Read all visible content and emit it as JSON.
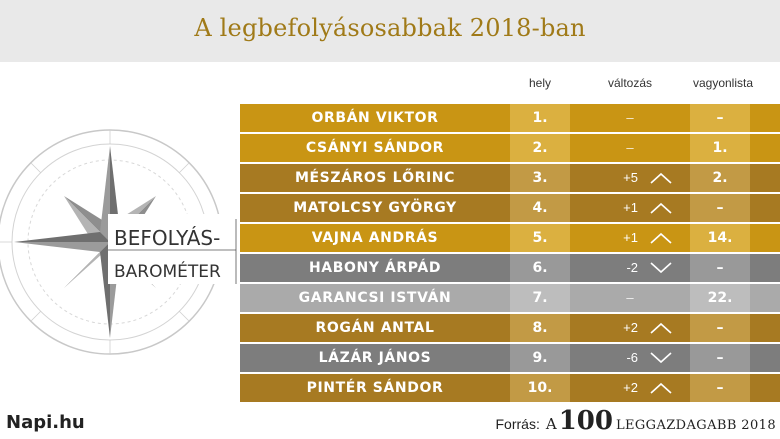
{
  "title": "A legbefolyásosabbak 2018-ban",
  "logo": {
    "line1": "BEFOLYÁS-",
    "line2": "BAROMÉTER"
  },
  "columns": {
    "hely": "hely",
    "valtozas": "változás",
    "vagyonlista": "vagyonlista"
  },
  "rows": [
    {
      "name": "ORBÁN VIKTOR",
      "rank": "1.",
      "change": "–",
      "direction": "none",
      "wealth": "–",
      "style": "gold"
    },
    {
      "name": "CSÁNYI SÁNDOR",
      "rank": "2.",
      "change": "–",
      "direction": "none",
      "wealth": "1.",
      "style": "gold"
    },
    {
      "name": "MÉSZÁROS LŐRINC",
      "rank": "3.",
      "change": "+5",
      "direction": "up",
      "wealth": "2.",
      "style": "bronze"
    },
    {
      "name": "MATOLCSY GYÖRGY",
      "rank": "4.",
      "change": "+1",
      "direction": "up",
      "wealth": "–",
      "style": "bronze"
    },
    {
      "name": "VAJNA ANDRÁS",
      "rank": "5.",
      "change": "+1",
      "direction": "up",
      "wealth": "14.",
      "style": "gold"
    },
    {
      "name": "HABONY ÁRPÁD",
      "rank": "6.",
      "change": "-2",
      "direction": "down",
      "wealth": "–",
      "style": "gray"
    },
    {
      "name": "GARANCSI ISTVÁN",
      "rank": "7.",
      "change": "–",
      "direction": "none",
      "wealth": "22.",
      "style": "lightgray"
    },
    {
      "name": "ROGÁN ANTAL",
      "rank": "8.",
      "change": "+2",
      "direction": "up",
      "wealth": "–",
      "style": "bronze"
    },
    {
      "name": "LÁZÁR JÁNOS",
      "rank": "9.",
      "change": "-6",
      "direction": "down",
      "wealth": "–",
      "style": "gray"
    },
    {
      "name": "PINTÉR SÁNDOR",
      "rank": "10.",
      "change": "+2",
      "direction": "up",
      "wealth": "–",
      "style": "bronze"
    }
  ],
  "palette": {
    "gold": {
      "name": "#c99514",
      "hely": "#dbb040",
      "valt": "#c99514",
      "vagy": "#dbb040",
      "tail": "#c99514"
    },
    "bronze": {
      "name": "#a77a22",
      "hely": "#c29a45",
      "valt": "#a77a22",
      "vagy": "#c29a45",
      "tail": "#a77a22"
    },
    "gray": {
      "name": "#7d7d7d",
      "hely": "#999999",
      "valt": "#7d7d7d",
      "vagy": "#999999",
      "tail": "#7d7d7d"
    },
    "lightgray": {
      "name": "#aaaaaa",
      "hely": "#bdbdbd",
      "valt": "#aaaaaa",
      "vagy": "#bdbdbd",
      "tail": "#aaaaaa"
    }
  },
  "footer": {
    "brand": "Napi.hu",
    "source_label": "Forrás:",
    "source_a": "A",
    "source_number": "100",
    "source_rest": "LEGGAZDAGABB 2018"
  }
}
